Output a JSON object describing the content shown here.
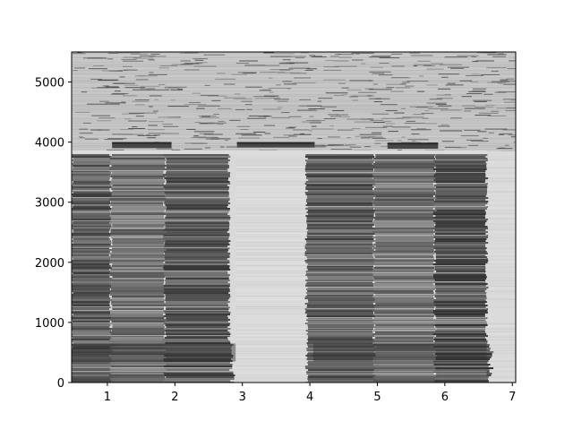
{
  "chart_data": {
    "type": "heatmap",
    "title": "",
    "xlabel": "",
    "ylabel": "",
    "xlim": [
      0.47,
      7.05
    ],
    "ylim": [
      0,
      5500
    ],
    "x_ticks": [
      1,
      2,
      3,
      4,
      5,
      6,
      7
    ],
    "x_tick_labels": [
      "1",
      "2",
      "3",
      "4",
      "5",
      "6",
      "7"
    ],
    "y_ticks": [
      0,
      1000,
      2000,
      3000,
      4000,
      5000
    ],
    "y_tick_labels": [
      "0",
      "1000",
      "2000",
      "3000",
      "4000",
      "5000"
    ],
    "colormap": "grayscale",
    "grid": false,
    "legend": "none",
    "regions": [
      {
        "name": "dense-block-1",
        "x_start": 0.47,
        "x_end": 2.9,
        "y_start": 0,
        "y_end": 3800,
        "level": 0.38
      },
      {
        "name": "dense-block-2",
        "x_start": 3.95,
        "x_end": 6.62,
        "y_start": 0,
        "y_end": 3800,
        "level": 0.38
      },
      {
        "name": "gap",
        "x_start": 2.9,
        "x_end": 3.95,
        "y_start": 0,
        "y_end": 3800,
        "level": 0.84
      },
      {
        "name": "top-noise-band",
        "x_start": 0.47,
        "x_end": 7.05,
        "y_start": 3850,
        "y_end": 5500,
        "level": 0.76
      },
      {
        "name": "right-strip",
        "x_start": 6.62,
        "x_end": 7.05,
        "y_start": 0,
        "y_end": 3850,
        "level": 0.86
      }
    ],
    "bars": [
      {
        "x_start": 1.07,
        "x_end": 1.95,
        "y_low": 3900,
        "y_high": 4000
      },
      {
        "x_start": 2.92,
        "x_end": 4.07,
        "y_low": 3910,
        "y_high": 4000
      },
      {
        "x_start": 5.15,
        "x_end": 5.9,
        "y_low": 3890,
        "y_high": 3990
      }
    ],
    "colors": {
      "background": "#ffffff",
      "axis": "#000000",
      "dark": "#3a3a3a",
      "mid": "#7e7e7e",
      "light": "#d8d8d8",
      "noise": "#c2c2c2"
    }
  }
}
